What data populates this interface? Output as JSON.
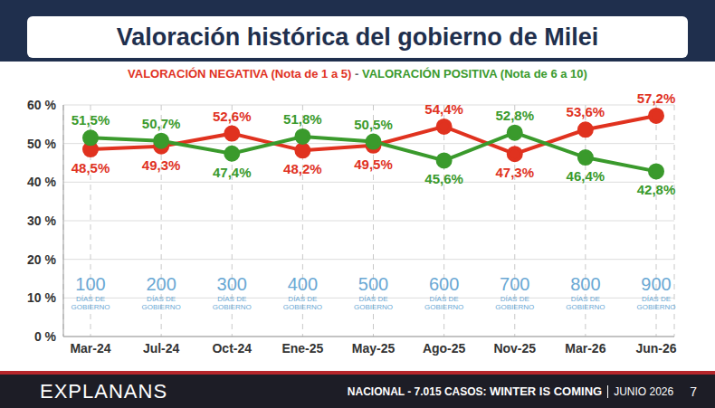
{
  "chart_data": {
    "type": "line",
    "title": "Valoración histórica del gobierno de Milei",
    "subtitle_separator": "-",
    "categories": [
      "Mar-24",
      "Jul-24",
      "Oct-24",
      "Ene-25",
      "May-25",
      "Ago-25",
      "Nov-25",
      "Mar-26",
      "Jun-26"
    ],
    "series": [
      {
        "name": "VALORACIÓN NEGATIVA (Nota de 1 a 5)",
        "color": "#e0321f",
        "marker": "circle",
        "values": [
          48.5,
          49.3,
          52.6,
          48.2,
          49.5,
          54.4,
          47.3,
          53.6,
          57.2
        ],
        "value_labels": [
          "48,5%",
          "49,3%",
          "52,6%",
          "48,2%",
          "49,5%",
          "54,4%",
          "47,3%",
          "53,6%",
          "57,2%"
        ]
      },
      {
        "name": "VALORACIÓN POSITIVA (Nota de 6 a 10)",
        "color": "#3a9a2c",
        "marker": "circle",
        "values": [
          51.5,
          50.7,
          47.4,
          51.8,
          50.5,
          45.6,
          52.8,
          46.4,
          42.8
        ],
        "value_labels": [
          "51,5%",
          "50,7%",
          "47,4%",
          "51,8%",
          "50,5%",
          "45,6%",
          "52,8%",
          "46,4%",
          "42,8%"
        ]
      }
    ],
    "days": [
      100,
      200,
      300,
      400,
      500,
      600,
      700,
      800,
      900
    ],
    "days_label": "DÍAS DE GOBIERNO",
    "ylim": [
      0,
      60
    ],
    "yticks": [
      {
        "value": 0,
        "label": "0 %"
      },
      {
        "value": 10,
        "label": "10 %"
      },
      {
        "value": 20,
        "label": "20 %"
      },
      {
        "value": 30,
        "label": "30 %"
      },
      {
        "value": 40,
        "label": "40 %"
      },
      {
        "value": 50,
        "label": "50 %"
      },
      {
        "value": 60,
        "label": "60 %"
      }
    ],
    "grid": true,
    "data_labels": true,
    "footer_brand": "EXPLANANS",
    "footer_text": "NACIONAL - 7.015 CASOS:",
    "footer_bold": "WINTER IS COMING",
    "footer_date": "JUNIO 2026",
    "page": "7"
  }
}
